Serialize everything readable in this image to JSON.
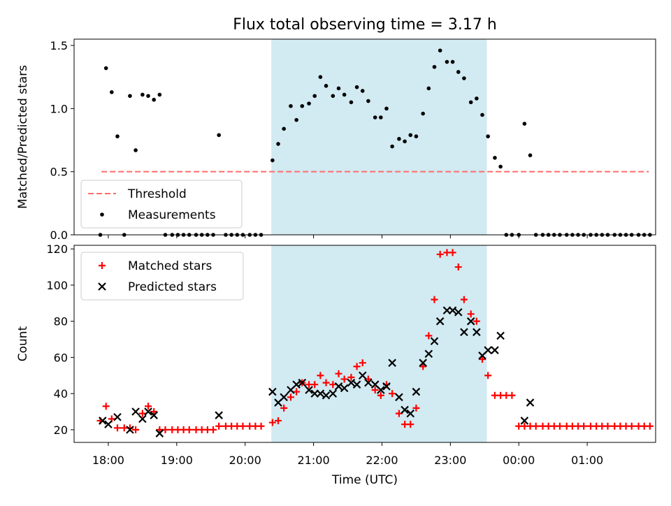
{
  "chart_data": [
    {
      "type": "scatter",
      "title": "Flux total observing time = 3.17 h",
      "xlabel": "",
      "ylabel": "Matched/Predicted stars",
      "ylim": [
        0,
        1.55
      ],
      "yticks": [
        0.0,
        0.5,
        1.0,
        1.5
      ],
      "ytick_labels": [
        "0.0",
        "0.5",
        "1.0",
        "1.5"
      ],
      "x_axis_type": "time",
      "xlim": [
        "17:30",
        "02:00"
      ],
      "grid": false,
      "legend": "lower-left",
      "shaded_interval": {
        "start": "20:23",
        "end": "23:32",
        "color": "#add8e6"
      },
      "threshold": {
        "name": "Threshold",
        "y": 0.5,
        "x_start": "17:54",
        "x_end": "01:54",
        "color": "#ff6b6b"
      },
      "series": [
        {
          "name": "Measurements",
          "marker": "dot",
          "color": "#000000",
          "points": [
            [
              "17:53",
              0.0
            ],
            [
              "17:58",
              1.32
            ],
            [
              "18:03",
              1.13
            ],
            [
              "18:08",
              0.78
            ],
            [
              "18:14",
              0.0
            ],
            [
              "18:19",
              1.1
            ],
            [
              "18:24",
              0.67
            ],
            [
              "18:30",
              1.11
            ],
            [
              "18:35",
              1.1
            ],
            [
              "18:40",
              1.07
            ],
            [
              "18:45",
              1.11
            ],
            [
              "18:50",
              0.0
            ],
            [
              "18:56",
              0.0
            ],
            [
              "19:01",
              0.0
            ],
            [
              "19:06",
              0.0
            ],
            [
              "19:11",
              0.0
            ],
            [
              "19:17",
              0.0
            ],
            [
              "19:22",
              0.0
            ],
            [
              "19:27",
              0.0
            ],
            [
              "19:32",
              0.0
            ],
            [
              "19:37",
              0.79
            ],
            [
              "19:43",
              0.0
            ],
            [
              "19:48",
              0.0
            ],
            [
              "19:53",
              0.0
            ],
            [
              "19:58",
              0.0
            ],
            [
              "20:04",
              0.0
            ],
            [
              "20:09",
              0.0
            ],
            [
              "20:14",
              0.0
            ],
            [
              "20:24",
              0.59
            ],
            [
              "20:29",
              0.72
            ],
            [
              "20:34",
              0.84
            ],
            [
              "20:40",
              1.02
            ],
            [
              "20:45",
              0.91
            ],
            [
              "20:50",
              1.02
            ],
            [
              "20:56",
              1.04
            ],
            [
              "21:01",
              1.1
            ],
            [
              "21:06",
              1.25
            ],
            [
              "21:11",
              1.18
            ],
            [
              "21:17",
              1.1
            ],
            [
              "21:22",
              1.16
            ],
            [
              "21:27",
              1.11
            ],
            [
              "21:33",
              1.05
            ],
            [
              "21:38",
              1.17
            ],
            [
              "21:43",
              1.14
            ],
            [
              "21:48",
              1.06
            ],
            [
              "21:54",
              0.93
            ],
            [
              "21:59",
              0.93
            ],
            [
              "22:04",
              1.0
            ],
            [
              "22:09",
              0.7
            ],
            [
              "22:15",
              0.76
            ],
            [
              "22:20",
              0.74
            ],
            [
              "22:25",
              0.79
            ],
            [
              "22:30",
              0.78
            ],
            [
              "22:36",
              0.96
            ],
            [
              "22:41",
              1.16
            ],
            [
              "22:46",
              1.33
            ],
            [
              "22:51",
              1.46
            ],
            [
              "22:57",
              1.37
            ],
            [
              "23:02",
              1.37
            ],
            [
              "23:07",
              1.29
            ],
            [
              "23:12",
              1.24
            ],
            [
              "23:18",
              1.05
            ],
            [
              "23:23",
              1.08
            ],
            [
              "23:28",
              0.95
            ],
            [
              "23:33",
              0.78
            ],
            [
              "23:39",
              0.61
            ],
            [
              "23:44",
              0.54
            ],
            [
              "23:49",
              0.0
            ],
            [
              "23:54",
              0.0
            ],
            [
              "00:00",
              0.0
            ],
            [
              "00:05",
              0.88
            ],
            [
              "00:10",
              0.63
            ],
            [
              "00:15",
              0.0
            ],
            [
              "00:21",
              0.0
            ],
            [
              "00:26",
              0.0
            ],
            [
              "00:31",
              0.0
            ],
            [
              "00:36",
              0.0
            ],
            [
              "00:42",
              0.0
            ],
            [
              "00:47",
              0.0
            ],
            [
              "00:52",
              0.0
            ],
            [
              "00:57",
              0.0
            ],
            [
              "01:03",
              0.0
            ],
            [
              "01:08",
              0.0
            ],
            [
              "01:13",
              0.0
            ],
            [
              "01:18",
              0.0
            ],
            [
              "01:24",
              0.0
            ],
            [
              "01:29",
              0.0
            ],
            [
              "01:34",
              0.0
            ],
            [
              "01:39",
              0.0
            ],
            [
              "01:45",
              0.0
            ],
            [
              "01:50",
              0.0
            ],
            [
              "01:55",
              0.0
            ]
          ]
        }
      ]
    },
    {
      "type": "scatter",
      "title": "",
      "xlabel": "Time (UTC)",
      "ylabel": "Count",
      "ylim": [
        13,
        122
      ],
      "yticks": [
        20,
        40,
        60,
        80,
        100,
        120
      ],
      "ytick_labels": [
        "20",
        "40",
        "60",
        "80",
        "100",
        "120"
      ],
      "x_axis_type": "time",
      "xlim": [
        "17:30",
        "02:00"
      ],
      "xticks": [
        "18:00",
        "19:00",
        "20:00",
        "21:00",
        "22:00",
        "23:00",
        "00:00",
        "01:00"
      ],
      "xtick_labels": [
        "18:00",
        "19:00",
        "20:00",
        "21:00",
        "22:00",
        "23:00",
        "00:00",
        "01:00"
      ],
      "grid": false,
      "legend": "top-left",
      "shaded_interval": {
        "start": "20:23",
        "end": "23:32",
        "color": "#add8e6"
      },
      "series": [
        {
          "name": "Matched stars",
          "marker": "plus",
          "color": "#ff0000",
          "points": [
            [
              "17:53",
              25
            ],
            [
              "17:58",
              33
            ],
            [
              "18:03",
              26
            ],
            [
              "18:08",
              21
            ],
            [
              "18:14",
              21
            ],
            [
              "18:19",
              21
            ],
            [
              "18:24",
              20
            ],
            [
              "18:30",
              29
            ],
            [
              "18:35",
              33
            ],
            [
              "18:40",
              30
            ],
            [
              "18:45",
              20
            ],
            [
              "18:50",
              20
            ],
            [
              "18:56",
              20
            ],
            [
              "19:01",
              20
            ],
            [
              "19:06",
              20
            ],
            [
              "19:11",
              20
            ],
            [
              "19:17",
              20
            ],
            [
              "19:22",
              20
            ],
            [
              "19:27",
              20
            ],
            [
              "19:32",
              20
            ],
            [
              "19:37",
              22
            ],
            [
              "19:43",
              22
            ],
            [
              "19:48",
              22
            ],
            [
              "19:53",
              22
            ],
            [
              "19:58",
              22
            ],
            [
              "20:04",
              22
            ],
            [
              "20:09",
              22
            ],
            [
              "20:14",
              22
            ],
            [
              "20:24",
              24
            ],
            [
              "20:29",
              25
            ],
            [
              "20:34",
              32
            ],
            [
              "20:40",
              38
            ],
            [
              "20:45",
              41
            ],
            [
              "20:50",
              46
            ],
            [
              "20:56",
              45
            ],
            [
              "21:01",
              45
            ],
            [
              "21:06",
              50
            ],
            [
              "21:11",
              46
            ],
            [
              "21:17",
              45
            ],
            [
              "21:22",
              51
            ],
            [
              "21:27",
              48
            ],
            [
              "21:33",
              49
            ],
            [
              "21:38",
              55
            ],
            [
              "21:43",
              57
            ],
            [
              "21:48",
              48
            ],
            [
              "21:54",
              42
            ],
            [
              "21:59",
              39
            ],
            [
              "22:04",
              45
            ],
            [
              "22:09",
              40
            ],
            [
              "22:15",
              29
            ],
            [
              "22:20",
              23
            ],
            [
              "22:25",
              23
            ],
            [
              "22:30",
              32
            ],
            [
              "22:36",
              55
            ],
            [
              "22:41",
              72
            ],
            [
              "22:46",
              92
            ],
            [
              "22:51",
              117
            ],
            [
              "22:57",
              118
            ],
            [
              "23:02",
              118
            ],
            [
              "23:07",
              110
            ],
            [
              "23:12",
              92
            ],
            [
              "23:18",
              84
            ],
            [
              "23:23",
              80
            ],
            [
              "23:28",
              59
            ],
            [
              "23:33",
              50
            ],
            [
              "23:39",
              39
            ],
            [
              "23:44",
              39
            ],
            [
              "23:49",
              39
            ],
            [
              "23:54",
              39
            ],
            [
              "00:00",
              22
            ],
            [
              "00:05",
              22
            ],
            [
              "00:10",
              22
            ],
            [
              "00:15",
              22
            ],
            [
              "00:21",
              22
            ],
            [
              "00:26",
              22
            ],
            [
              "00:31",
              22
            ],
            [
              "00:36",
              22
            ],
            [
              "00:42",
              22
            ],
            [
              "00:47",
              22
            ],
            [
              "00:52",
              22
            ],
            [
              "00:57",
              22
            ],
            [
              "01:03",
              22
            ],
            [
              "01:08",
              22
            ],
            [
              "01:13",
              22
            ],
            [
              "01:18",
              22
            ],
            [
              "01:24",
              22
            ],
            [
              "01:29",
              22
            ],
            [
              "01:34",
              22
            ],
            [
              "01:39",
              22
            ],
            [
              "01:45",
              22
            ],
            [
              "01:50",
              22
            ],
            [
              "01:55",
              22
            ]
          ]
        },
        {
          "name": "Predicted stars",
          "marker": "x",
          "color": "#000000",
          "points": [
            [
              "17:55",
              25
            ],
            [
              "18:00",
              23
            ],
            [
              "18:08",
              27
            ],
            [
              "18:19",
              20
            ],
            [
              "18:24",
              30
            ],
            [
              "18:30",
              26
            ],
            [
              "18:35",
              30
            ],
            [
              "18:40",
              28
            ],
            [
              "18:45",
              18
            ],
            [
              "19:37",
              28
            ],
            [
              "20:24",
              41
            ],
            [
              "20:29",
              35
            ],
            [
              "20:34",
              38
            ],
            [
              "20:40",
              42
            ],
            [
              "20:45",
              45
            ],
            [
              "20:50",
              46
            ],
            [
              "20:56",
              42
            ],
            [
              "21:01",
              40
            ],
            [
              "21:06",
              40
            ],
            [
              "21:11",
              39
            ],
            [
              "21:17",
              40
            ],
            [
              "21:22",
              44
            ],
            [
              "21:27",
              43
            ],
            [
              "21:33",
              46
            ],
            [
              "21:38",
              45
            ],
            [
              "21:43",
              50
            ],
            [
              "21:48",
              46
            ],
            [
              "21:54",
              45
            ],
            [
              "21:59",
              42
            ],
            [
              "22:04",
              44
            ],
            [
              "22:09",
              57
            ],
            [
              "22:15",
              38
            ],
            [
              "22:20",
              31
            ],
            [
              "22:25",
              29
            ],
            [
              "22:30",
              41
            ],
            [
              "22:36",
              57
            ],
            [
              "22:41",
              62
            ],
            [
              "22:46",
              69
            ],
            [
              "22:51",
              80
            ],
            [
              "22:57",
              86
            ],
            [
              "23:02",
              86
            ],
            [
              "23:07",
              85
            ],
            [
              "23:12",
              74
            ],
            [
              "23:18",
              80
            ],
            [
              "23:23",
              74
            ],
            [
              "23:28",
              61
            ],
            [
              "23:33",
              64
            ],
            [
              "23:39",
              64
            ],
            [
              "23:44",
              72
            ],
            [
              "00:05",
              25
            ],
            [
              "00:10",
              35
            ]
          ]
        }
      ]
    }
  ]
}
